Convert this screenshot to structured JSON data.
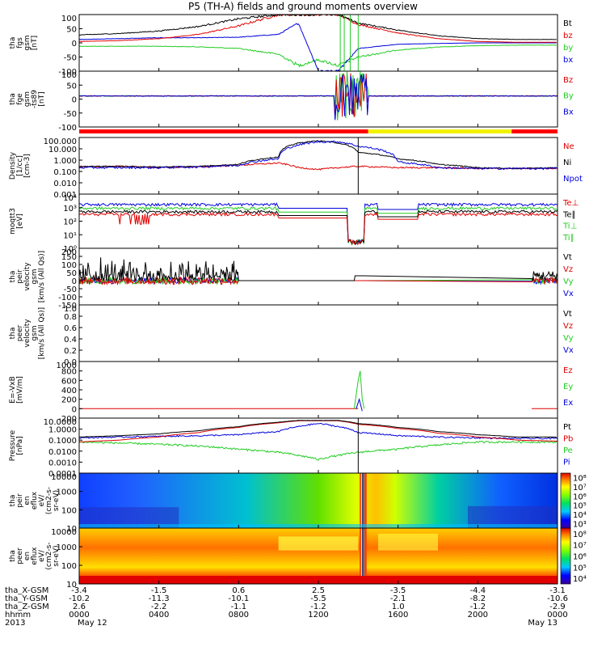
{
  "title": "P5 (TH-A) fields and ground moments overview",
  "colors": {
    "black": "#000000",
    "red": "#e00000",
    "green": "#22cc22",
    "blue": "#0000dd",
    "yellow": "#f2f200"
  },
  "panels": [
    {
      "id": "fgs",
      "ylabel": [
        "tha",
        "fgs",
        "gsm",
        "[nT]"
      ],
      "ticks": [
        "100",
        "50",
        "0",
        "-50",
        "-100"
      ],
      "legend": [
        {
          "text": "Bt",
          "color": "black"
        },
        {
          "text": "bz",
          "color": "red"
        },
        {
          "text": "by",
          "color": "green"
        },
        {
          "text": "bx",
          "color": "blue"
        }
      ]
    },
    {
      "id": "fge",
      "ylabel": [
        "tha",
        "fge",
        "gsm",
        "-ts89",
        "[nT]"
      ],
      "ticks": [
        "100",
        "50",
        "0",
        "-50",
        "-100"
      ],
      "legend": [
        {
          "text": "Bz",
          "color": "red"
        },
        {
          "text": "By",
          "color": "green"
        },
        {
          "text": "Bx",
          "color": "blue"
        }
      ]
    },
    {
      "id": "density",
      "ylabel": [
        "Density",
        "[1/cc]",
        "[cm-3]"
      ],
      "ticks": [
        "100.000",
        "10.000",
        "1.000",
        "0.100",
        "0.010",
        "0.001"
      ],
      "legend": [
        {
          "text": "Ne",
          "color": "red"
        },
        {
          "text": "Ni",
          "color": "black"
        },
        {
          "text": "Npot",
          "color": "blue"
        }
      ]
    },
    {
      "id": "temp",
      "ylabel": [
        "moqtt3",
        "[eV]"
      ],
      "ticks": [
        "10⁴",
        "10³",
        "10²",
        "10¹",
        "10⁰"
      ],
      "legend": [
        {
          "text": "Te⊥",
          "color": "red"
        },
        {
          "text": "Te∥",
          "color": "black"
        },
        {
          "text": "Ti⊥",
          "color": "green"
        },
        {
          "text": "Ti∥",
          "color": "green"
        }
      ]
    },
    {
      "id": "peir_vel",
      "ylabel": [
        "tha",
        "peir",
        "velocity",
        "gsm",
        "[km/s (All Qs)]"
      ],
      "ticks": [
        "200",
        "150",
        "100",
        "50",
        "0",
        "-50",
        "-100",
        "-150"
      ],
      "legend": [
        {
          "text": "Vt",
          "color": "black"
        },
        {
          "text": "Vz",
          "color": "red"
        },
        {
          "text": "Vy",
          "color": "green"
        },
        {
          "text": "Vx",
          "color": "blue"
        }
      ]
    },
    {
      "id": "peer_vel",
      "ylabel": [
        "tha",
        "peer",
        "velocity",
        "gsm",
        "[km/s (All Qs)]"
      ],
      "ticks": [
        "1.0",
        "0.8",
        "0.6",
        "0.4",
        "0.2",
        "0.0"
      ],
      "legend": [
        {
          "text": "Vt",
          "color": "black"
        },
        {
          "text": "Vz",
          "color": "red"
        },
        {
          "text": "Vy",
          "color": "green"
        },
        {
          "text": "Vx",
          "color": "blue"
        }
      ]
    },
    {
      "id": "efield",
      "ylabel": [
        "E=-VxB",
        "[mV/m]"
      ],
      "ticks": [
        "1000",
        "800",
        "600",
        "400",
        "200",
        "0",
        "-200"
      ],
      "legend": [
        {
          "text": "Ez",
          "color": "red"
        },
        {
          "text": "Ey",
          "color": "green"
        },
        {
          "text": "Ex",
          "color": "blue"
        }
      ]
    },
    {
      "id": "pressure",
      "ylabel": [
        "Pressure",
        "[nPa]"
      ],
      "ticks": [
        "10.0000",
        "1.0000",
        "0.1000",
        "0.0100",
        "0.0010",
        "0.0001"
      ],
      "legend": [
        {
          "text": "Pt",
          "color": "black"
        },
        {
          "text": "Pb",
          "color": "red"
        },
        {
          "text": "Pe",
          "color": "green"
        },
        {
          "text": "Pi",
          "color": "blue"
        }
      ]
    },
    {
      "id": "peir_spec",
      "ylabel": [
        "tha",
        "peir",
        "en",
        "eflux",
        "eV/",
        "(cm2-s-",
        "sr-eV)"
      ],
      "ticks": [
        "10000",
        "1000",
        "100",
        "10"
      ],
      "colorbar": [
        "10⁸",
        "10⁷",
        "10⁶",
        "10⁵",
        "10⁴",
        "10³"
      ]
    },
    {
      "id": "peer_spec",
      "ylabel": [
        "tha",
        "peer",
        "en",
        "eflux",
        "eV/",
        "(cm2-s-",
        "sr-eV)"
      ],
      "ticks": [
        "10000",
        "1000",
        "100",
        "10"
      ],
      "colorbar": [
        "10⁸",
        "10⁷",
        "10⁶",
        "10⁵",
        "10⁴"
      ]
    }
  ],
  "footer": {
    "row_labels": [
      "tha_X-GSM",
      "tha_Y-GSM",
      "tha_Z-GSM",
      "hhmm",
      "2013"
    ],
    "columns": [
      [
        "-3.4",
        "-10.2",
        "2.6",
        "0000",
        "May 12"
      ],
      [
        "-1.5",
        "-11.3",
        "-2.2",
        "0400",
        ""
      ],
      [
        "0.6",
        "-10.1",
        "-1.1",
        "0800",
        ""
      ],
      [
        "2.5",
        "-5.5",
        "-1.2",
        "1200",
        ""
      ],
      [
        "-3.5",
        "-2.1",
        "1.0",
        "1600",
        ""
      ],
      [
        "-4.4",
        "-8.2",
        "-1.2",
        "2000",
        ""
      ],
      [
        "-3.1",
        "-10.6",
        "-2.9",
        "0000",
        "May 13"
      ]
    ]
  },
  "chart_data": {
    "type": "line",
    "title": "P5 (TH-A) fields and ground moments overview",
    "x_unit": "hhmm",
    "x_ticks": [
      "0000",
      "0400",
      "0800",
      "1200",
      "1600",
      "2000",
      "0000"
    ],
    "x": [
      0,
      2,
      4,
      6,
      8,
      10,
      11,
      12,
      13,
      14,
      16,
      18,
      20,
      22,
      24
    ],
    "series": [
      {
        "name": "Bt",
        "panel": "fgs",
        "values": [
          28,
          33,
          42,
          58,
          85,
          100,
          100,
          100,
          100,
          70,
          45,
          25,
          15,
          12,
          12
        ]
      },
      {
        "name": "bz",
        "panel": "fgs",
        "values": [
          5,
          8,
          15,
          30,
          60,
          100,
          100,
          100,
          100,
          65,
          35,
          15,
          5,
          2,
          2
        ]
      },
      {
        "name": "by",
        "panel": "fgs",
        "values": [
          -12,
          -12,
          -12,
          -14,
          -20,
          -40,
          -80,
          -60,
          -80,
          -50,
          -25,
          -15,
          -10,
          -8,
          -8
        ]
      },
      {
        "name": "bx",
        "panel": "fgs",
        "values": [
          12,
          15,
          18,
          18,
          20,
          30,
          70,
          -100,
          -100,
          -20,
          -5,
          -2,
          0,
          0,
          0
        ]
      },
      {
        "name": "Ni",
        "panel": "density",
        "values": [
          0.4,
          0.4,
          0.35,
          0.4,
          0.6,
          3,
          60,
          100,
          60,
          8,
          2,
          0.6,
          0.3,
          0.25,
          0.3
        ]
      },
      {
        "name": "Ne",
        "panel": "density",
        "values": [
          0.35,
          0.4,
          0.3,
          0.35,
          0.5,
          0.8,
          0.3,
          0.2,
          0.3,
          0.4,
          0.3,
          0.3,
          0.25,
          0.25,
          0.25
        ]
      },
      {
        "name": "Pt",
        "panel": "pressure",
        "values": [
          0.3,
          0.4,
          0.6,
          1.2,
          3,
          8,
          12,
          12,
          12,
          6,
          2.5,
          1.0,
          0.5,
          0.3,
          0.3
        ]
      },
      {
        "name": "Pe",
        "panel": "pressure",
        "values": [
          0.1,
          0.08,
          0.06,
          0.04,
          0.02,
          0.01,
          0.005,
          0.002,
          0.005,
          0.01,
          0.02,
          0.05,
          0.1,
          0.1,
          0.1
        ]
      }
    ]
  }
}
